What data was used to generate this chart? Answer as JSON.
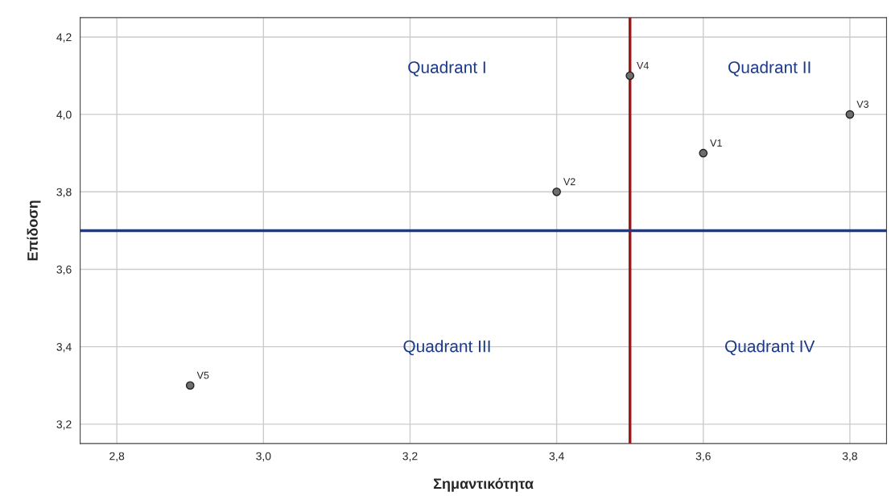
{
  "chart_data": {
    "type": "scatter",
    "xlabel": "Σημαντικότητα",
    "ylabel": "Επίδοση",
    "x": [
      3.6,
      3.4,
      3.8,
      3.5,
      2.9
    ],
    "series": [
      {
        "color": "#6e6e6e",
        "values": [
          3.9,
          3.8,
          4.0,
          4.1,
          3.3
        ]
      }
    ],
    "marker": "circle",
    "grid": true,
    "legend": false,
    "xlim": [
      2.75,
      3.85
    ],
    "ylim": [
      3.15,
      4.25
    ],
    "xticks": [
      {
        "value": 2.8,
        "label": "2,8"
      },
      {
        "value": 3.0,
        "label": "3,0"
      },
      {
        "value": 3.2,
        "label": "3,2"
      },
      {
        "value": 3.4,
        "label": "3,4"
      },
      {
        "value": 3.6,
        "label": "3,6"
      },
      {
        "value": 3.8,
        "label": "3,8"
      }
    ],
    "yticks": [
      {
        "value": 3.2,
        "label": "3,2"
      },
      {
        "value": 3.4,
        "label": "3,4"
      },
      {
        "value": 3.6,
        "label": "3,6"
      },
      {
        "value": 3.8,
        "label": "3,8"
      },
      {
        "value": 4.0,
        "label": "4,0"
      },
      {
        "value": 4.2,
        "label": "4,2"
      }
    ],
    "ref_lines": [
      {
        "axis": "x",
        "value": 3.5,
        "color": "#a01818"
      },
      {
        "axis": "y",
        "value": 3.7,
        "color": "#1c3a8c"
      }
    ],
    "annotations": [
      {
        "text": "V1",
        "x": 3.6,
        "y": 3.9
      },
      {
        "text": "V2",
        "x": 3.4,
        "y": 3.8
      },
      {
        "text": "V3",
        "x": 3.8,
        "y": 4.0
      },
      {
        "text": "V4",
        "x": 3.5,
        "y": 4.1
      },
      {
        "text": "V5",
        "x": 2.9,
        "y": 3.3
      },
      "Quadrant I",
      "Quadrant II",
      "Quadrant III",
      "Quadrant IV"
    ]
  }
}
